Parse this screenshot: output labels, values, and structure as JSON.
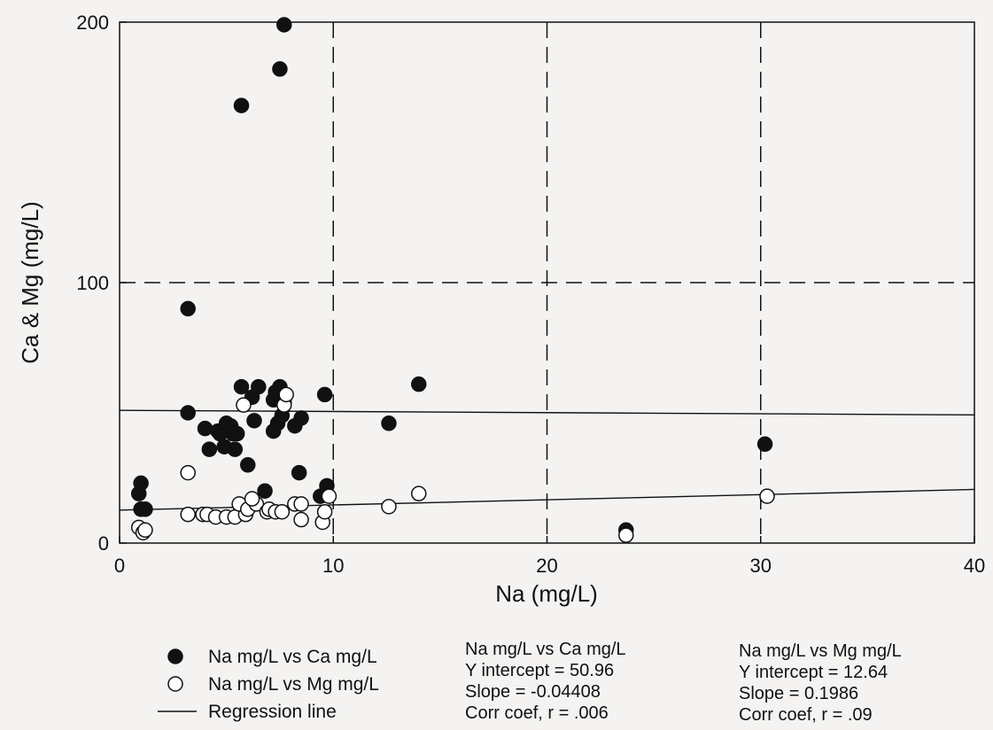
{
  "chart_data": {
    "type": "scatter",
    "title": "",
    "xlabel": "Na (mg/L)",
    "ylabel": "Ca & Mg (mg/L)",
    "xlim": [
      0,
      40
    ],
    "ylim": [
      0,
      200
    ],
    "x_ticks": [
      "0",
      "10",
      "20",
      "30",
      "40"
    ],
    "y_ticks": [
      "0",
      "100",
      "200"
    ],
    "dashed_gridlines": {
      "x": [
        10,
        20,
        30
      ],
      "y": [
        100
      ]
    },
    "legend_placement": "bottom-left",
    "legend": {
      "ca": "Na mg/L vs Ca mg/L",
      "mg": "Na mg/L vs Mg mg/L",
      "regression": "Regression line"
    },
    "series": [
      {
        "name": "Na mg/L vs Ca mg/L",
        "marker": "filled-circle",
        "color": "#111111",
        "points": [
          [
            1.0,
            23
          ],
          [
            0.9,
            19
          ],
          [
            1.2,
            13
          ],
          [
            1.0,
            13
          ],
          [
            3.2,
            90
          ],
          [
            3.2,
            50
          ],
          [
            4.0,
            44
          ],
          [
            4.2,
            36
          ],
          [
            4.6,
            43
          ],
          [
            4.9,
            37
          ],
          [
            5.2,
            45
          ],
          [
            5.3,
            42
          ],
          [
            4.7,
            42
          ],
          [
            5.0,
            46
          ],
          [
            5.4,
            36
          ],
          [
            5.5,
            42
          ],
          [
            5.7,
            60
          ],
          [
            6.0,
            30
          ],
          [
            6.2,
            56
          ],
          [
            6.5,
            60
          ],
          [
            6.3,
            47
          ],
          [
            6.8,
            20
          ],
          [
            7.2,
            55
          ],
          [
            7.3,
            58
          ],
          [
            7.5,
            60
          ],
          [
            7.4,
            46
          ],
          [
            7.2,
            43
          ],
          [
            7.7,
            54
          ],
          [
            7.6,
            49
          ],
          [
            8.2,
            45
          ],
          [
            8.5,
            48
          ],
          [
            8.4,
            27
          ],
          [
            9.6,
            57
          ],
          [
            9.7,
            22
          ],
          [
            9.4,
            18
          ],
          [
            12.6,
            46
          ],
          [
            14.0,
            61
          ],
          [
            23.7,
            5
          ],
          [
            30.2,
            38
          ],
          [
            5.7,
            168
          ],
          [
            7.5,
            182
          ],
          [
            7.7,
            199
          ]
        ]
      },
      {
        "name": "Na mg/L vs Mg mg/L",
        "marker": "open-circle",
        "color": "#111111",
        "points": [
          [
            0.9,
            6
          ],
          [
            1.1,
            4
          ],
          [
            1.2,
            5
          ],
          [
            3.2,
            27
          ],
          [
            3.2,
            11
          ],
          [
            3.9,
            11
          ],
          [
            4.1,
            11
          ],
          [
            4.5,
            10
          ],
          [
            5.0,
            10
          ],
          [
            5.4,
            10
          ],
          [
            5.9,
            11
          ],
          [
            5.6,
            15
          ],
          [
            6.0,
            13
          ],
          [
            6.4,
            15
          ],
          [
            6.9,
            12
          ],
          [
            7.0,
            13
          ],
          [
            7.3,
            12
          ],
          [
            7.6,
            12
          ],
          [
            6.2,
            17
          ],
          [
            5.8,
            53
          ],
          [
            7.7,
            53
          ],
          [
            7.8,
            57
          ],
          [
            8.2,
            15
          ],
          [
            8.5,
            15
          ],
          [
            8.5,
            9
          ],
          [
            9.5,
            8
          ],
          [
            9.6,
            12
          ],
          [
            9.8,
            18
          ],
          [
            12.6,
            14
          ],
          [
            14.0,
            19
          ],
          [
            23.7,
            3
          ],
          [
            30.3,
            18
          ]
        ]
      }
    ],
    "regressions": [
      {
        "name": "Na mg/L vs Ca mg/L",
        "title": "Na mg/L vs Ca mg/L",
        "intercept_label": "Y intercept = 50.96",
        "slope_label": "Slope = -0.04408",
        "r_label": "Corr coef, r  = .006",
        "intercept": 50.96,
        "slope": -0.04408,
        "r": 0.006
      },
      {
        "name": "Na mg/L vs Mg mg/L",
        "title": "Na mg/L vs Mg mg/L",
        "intercept_label": "Y intercept = 12.64",
        "slope_label": "Slope = 0.1986",
        "r_label": "Corr coef, r = .09",
        "intercept": 12.64,
        "slope": 0.1986,
        "r": 0.09
      }
    ]
  }
}
